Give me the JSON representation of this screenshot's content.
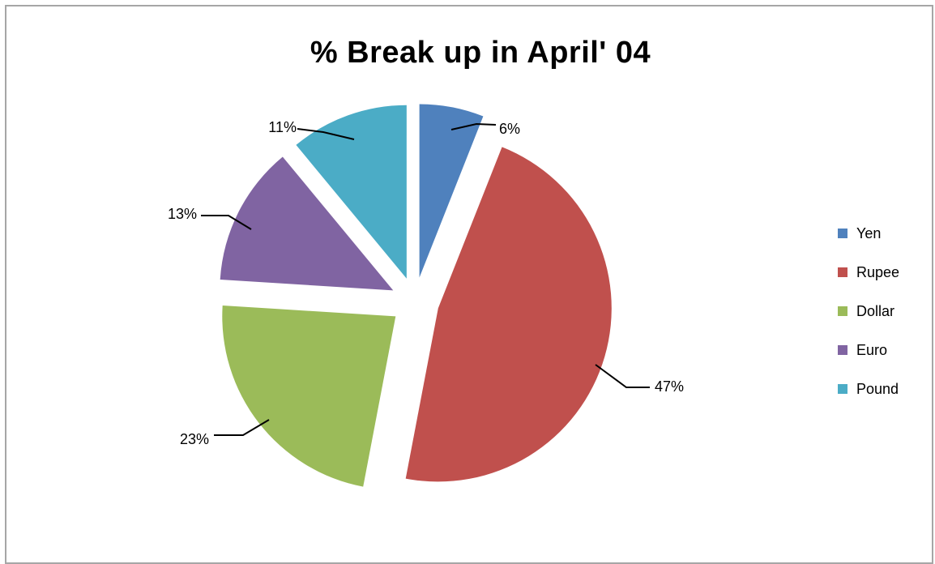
{
  "chart_data": {
    "type": "pie",
    "title": "% Break up in April' 04",
    "slices": [
      {
        "name": "Yen",
        "value": 6,
        "label": "6%",
        "color": "#4f81bd"
      },
      {
        "name": "Rupee",
        "value": 47,
        "label": "47%",
        "color": "#c0504d"
      },
      {
        "name": "Dollar",
        "value": 23,
        "label": "23%",
        "color": "#9bbb59"
      },
      {
        "name": "Euro",
        "value": 13,
        "label": "13%",
        "color": "#8064a2"
      },
      {
        "name": "Pound",
        "value": 11,
        "label": "11%",
        "color": "#4bacc6"
      }
    ],
    "exploded": true,
    "legend_position": "right"
  }
}
